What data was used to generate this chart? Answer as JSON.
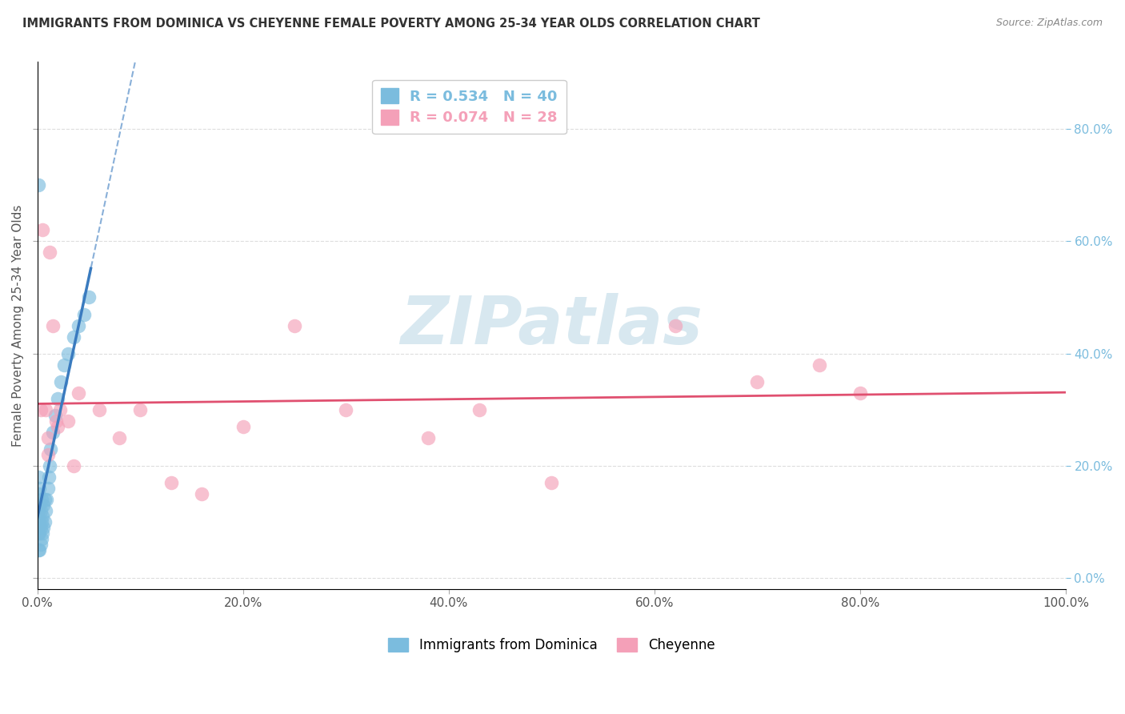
{
  "title": "IMMIGRANTS FROM DOMINICA VS CHEYENNE FEMALE POVERTY AMONG 25-34 YEAR OLDS CORRELATION CHART",
  "source": "Source: ZipAtlas.com",
  "ylabel": "Female Poverty Among 25-34 Year Olds",
  "xlim": [
    0,
    1.0
  ],
  "ylim": [
    -0.02,
    0.92
  ],
  "xticks": [
    0.0,
    0.2,
    0.4,
    0.6,
    0.8,
    1.0
  ],
  "xtick_labels": [
    "0.0%",
    "20.0%",
    "40.0%",
    "60.0%",
    "80.0%",
    "100.0%"
  ],
  "yticks": [
    0.0,
    0.2,
    0.4,
    0.6,
    0.8
  ],
  "ytick_labels": [
    "0.0%",
    "20.0%",
    "40.0%",
    "60.0%",
    "80.0%"
  ],
  "legend1_label": "R = 0.534   N = 40",
  "legend2_label": "R = 0.074   N = 28",
  "series1_color": "#7bbcde",
  "series2_color": "#f4a0b8",
  "trend1_color": "#3a7bbf",
  "trend2_color": "#e05070",
  "watermark": "ZIPatlas",
  "watermark_color": "#d8e8f0",
  "dominica_x": [
    0.001,
    0.001,
    0.001,
    0.001,
    0.001,
    0.001,
    0.002,
    0.002,
    0.002,
    0.002,
    0.002,
    0.003,
    0.003,
    0.003,
    0.004,
    0.004,
    0.004,
    0.005,
    0.005,
    0.006,
    0.006,
    0.007,
    0.007,
    0.008,
    0.009,
    0.01,
    0.011,
    0.012,
    0.013,
    0.015,
    0.017,
    0.02,
    0.023,
    0.026,
    0.03,
    0.035,
    0.04,
    0.045,
    0.05,
    0.001
  ],
  "dominica_y": [
    0.05,
    0.08,
    0.1,
    0.12,
    0.15,
    0.18,
    0.05,
    0.08,
    0.1,
    0.13,
    0.16,
    0.06,
    0.09,
    0.12,
    0.07,
    0.1,
    0.14,
    0.08,
    0.11,
    0.09,
    0.13,
    0.1,
    0.14,
    0.12,
    0.14,
    0.16,
    0.18,
    0.2,
    0.23,
    0.26,
    0.29,
    0.32,
    0.35,
    0.38,
    0.4,
    0.43,
    0.45,
    0.47,
    0.5,
    0.7
  ],
  "cheyenne_x": [
    0.003,
    0.005,
    0.008,
    0.01,
    0.012,
    0.015,
    0.018,
    0.022,
    0.03,
    0.04,
    0.06,
    0.08,
    0.1,
    0.13,
    0.16,
    0.2,
    0.25,
    0.3,
    0.38,
    0.43,
    0.5,
    0.62,
    0.7,
    0.76,
    0.8,
    0.01,
    0.02,
    0.035
  ],
  "cheyenne_y": [
    0.3,
    0.62,
    0.3,
    0.25,
    0.58,
    0.45,
    0.28,
    0.3,
    0.28,
    0.33,
    0.3,
    0.25,
    0.3,
    0.17,
    0.15,
    0.27,
    0.45,
    0.3,
    0.25,
    0.3,
    0.17,
    0.45,
    0.35,
    0.38,
    0.33,
    0.22,
    0.27,
    0.2
  ]
}
